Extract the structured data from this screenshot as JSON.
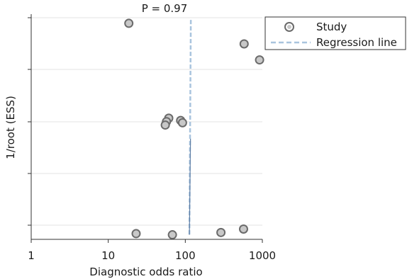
{
  "chart_data": {
    "type": "scatter",
    "title": "P = 0.97",
    "xlabel": "Diagnostic odds ratio",
    "ylabel": "1/root (ESS)",
    "x_scale": "log",
    "xlim": [
      1,
      1000
    ],
    "xticks": [
      1,
      10,
      100,
      1000
    ],
    "xtick_labels": [
      "1",
      "10",
      "100",
      "1000"
    ],
    "ylim": [
      0,
      1
    ],
    "grid": true,
    "legend_position": "top-right",
    "legend": [
      "Study",
      "Regression line"
    ],
    "series": [
      {
        "name": "Study",
        "points": [
          {
            "x": 18.5,
            "y": 0.925
          },
          {
            "x": 580,
            "y": 0.835
          },
          {
            "x": 920,
            "y": 0.765
          },
          {
            "x": 61,
            "y": 0.51
          },
          {
            "x": 57,
            "y": 0.495
          },
          {
            "x": 55,
            "y": 0.48
          },
          {
            "x": 87,
            "y": 0.5
          },
          {
            "x": 92,
            "y": 0.49
          },
          {
            "x": 23,
            "y": 0.005
          },
          {
            "x": 68,
            "y": 0.0
          },
          {
            "x": 290,
            "y": 0.01
          },
          {
            "x": 570,
            "y": 0.025
          }
        ]
      },
      {
        "name": "Regression line",
        "points": [
          {
            "x": 118,
            "y": 0.94
          },
          {
            "x": 113,
            "y": 0.0
          }
        ]
      }
    ],
    "colors": {
      "marker_stroke": "#6b6b6b",
      "marker_inner": "#c8c8c8",
      "regression": "#a9c4de",
      "regression_dark": "#5f7fa6",
      "grid": "#e3e3e3",
      "axis": "#333333"
    }
  }
}
